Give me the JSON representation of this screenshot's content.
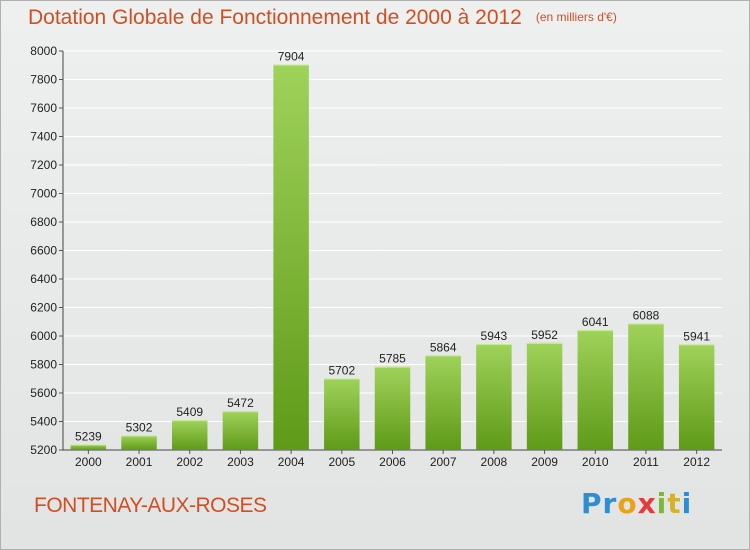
{
  "header": {
    "title": "Dotation Globale de Fonctionnement de 2000 à 2012",
    "subtitle": "(en milliers d'€)"
  },
  "footer": {
    "city": "FONTENAY-AUX-ROSES",
    "logo": {
      "p1": "Pr",
      "p2": "o",
      "p3": "x",
      "p4": "i",
      "p5": "t",
      "p6": "i"
    }
  },
  "colors": {
    "title": "#d04f22",
    "bar_light": "#9fd25a",
    "bar_dark": "#5f9a18",
    "grid": "#ffffff"
  },
  "chart_data": {
    "type": "bar",
    "title": "Dotation Globale de Fonctionnement de 2000 à 2012",
    "subtitle": "(en milliers d'€)",
    "xlabel": "",
    "ylabel": "",
    "categories": [
      "2000",
      "2001",
      "2002",
      "2003",
      "2004",
      "2005",
      "2006",
      "2007",
      "2008",
      "2009",
      "2010",
      "2011",
      "2012"
    ],
    "values": [
      5239,
      5302,
      5409,
      5472,
      7904,
      5702,
      5785,
      5864,
      5943,
      5952,
      6041,
      6088,
      5941
    ],
    "ylim": [
      5200,
      8000
    ],
    "yticks": [
      5200,
      5400,
      5600,
      5800,
      6000,
      6200,
      6400,
      6600,
      6800,
      7000,
      7200,
      7400,
      7600,
      7800,
      8000
    ],
    "grid": true,
    "data_labels": true
  }
}
